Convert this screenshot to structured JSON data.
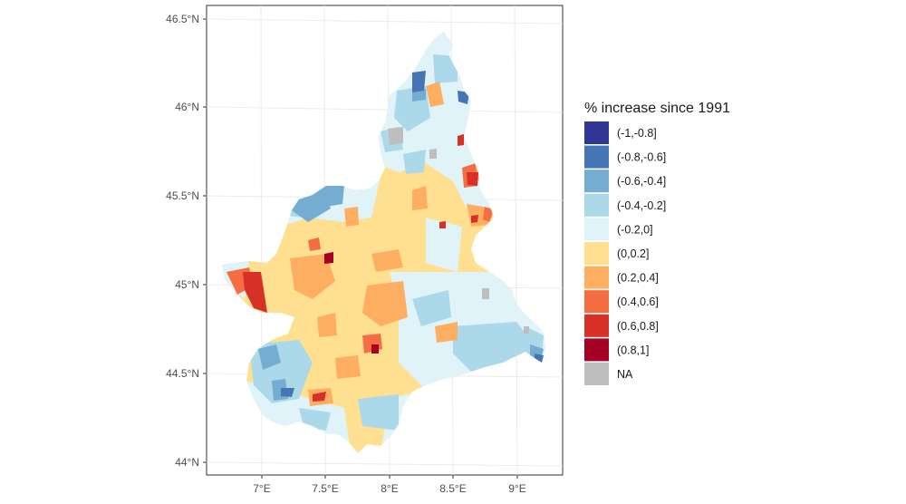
{
  "map": {
    "type": "choropleth",
    "region": "Piedmont",
    "x_axis_ticks": [
      "7°E",
      "7.5°E",
      "8°E",
      "8.5°E",
      "9°E"
    ],
    "x_axis_values": [
      7.0,
      7.5,
      8.0,
      8.5,
      9.0
    ],
    "y_axis_ticks": [
      "46.5°N",
      "46°N",
      "45.5°N",
      "45°N",
      "44.5°N",
      "44°N"
    ],
    "y_axis_values": [
      46.5,
      46.0,
      45.5,
      45.0,
      44.5,
      44.0
    ],
    "grid": true
  },
  "legend": {
    "title": "% increase since 1991",
    "placement": "right",
    "entries": [
      {
        "label": "(-1,-0.8]",
        "color": "#313695"
      },
      {
        "label": "(-0.8,-0.6]",
        "color": "#4575b4"
      },
      {
        "label": "(-0.6,-0.4]",
        "color": "#74add1"
      },
      {
        "label": "(-0.4,-0.2]",
        "color": "#abd9e9"
      },
      {
        "label": "(-0.2,0]",
        "color": "#e0f3f8"
      },
      {
        "label": "(0,0.2]",
        "color": "#fee090"
      },
      {
        "label": "(0.2,0.4]",
        "color": "#fdae61"
      },
      {
        "label": "(0.4,0.6]",
        "color": "#f46d43"
      },
      {
        "label": "(0.6,0.8]",
        "color": "#d73027"
      },
      {
        "label": "(0.8,1]",
        "color": "#a50026"
      },
      {
        "label": "NA",
        "color": "#bebebe"
      }
    ]
  }
}
